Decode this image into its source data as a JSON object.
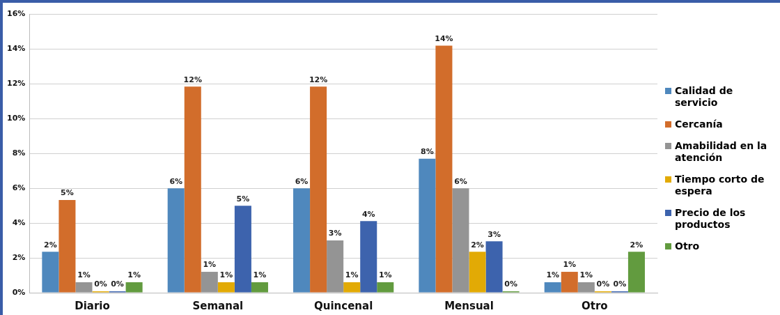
{
  "chart_data": {
    "type": "bar",
    "categories": [
      "Diario",
      "Semanal",
      "Quincenal",
      "Mensual",
      "Otro"
    ],
    "series": [
      {
        "name": "Calidad de servicio",
        "color": "#4f88bd",
        "values": [
          2.35,
          6.0,
          6.0,
          7.7,
          0.6
        ],
        "value_labels": [
          "2%",
          "6%",
          "6%",
          "8%",
          "1%"
        ]
      },
      {
        "name": "Cercanía",
        "color": "#d26d2b",
        "values": [
          5.33,
          11.85,
          11.85,
          14.2,
          1.2
        ],
        "value_labels": [
          "5%",
          "12%",
          "12%",
          "14%",
          "1%"
        ]
      },
      {
        "name": "Amabilidad en la atención",
        "color": "#949494",
        "values": [
          0.6,
          1.2,
          3.0,
          6.0,
          0.6
        ],
        "value_labels": [
          "1%",
          "1%",
          "3%",
          "6%",
          "1%"
        ]
      },
      {
        "name": "Tiempo corto de espera",
        "color": "#e2aa05",
        "values": [
          0,
          0.6,
          0.6,
          2.35,
          0
        ],
        "value_labels": [
          "0%",
          "1%",
          "1%",
          "2%",
          "0%"
        ]
      },
      {
        "name": "Precio de los productos",
        "color": "#3d63ad",
        "values": [
          0,
          5.0,
          4.12,
          2.95,
          0
        ],
        "value_labels": [
          "0%",
          "5%",
          "4%",
          "3%",
          "0%"
        ]
      },
      {
        "name": "Otro",
        "color": "#629b3f",
        "values": [
          0.6,
          0.6,
          0.6,
          0,
          2.35
        ],
        "value_labels": [
          "1%",
          "1%",
          "1%",
          "0%",
          "2%"
        ]
      }
    ],
    "ylim": [
      0,
      16
    ],
    "yticks": [
      {
        "value": 0,
        "label": "0%"
      },
      {
        "value": 2,
        "label": "2%"
      },
      {
        "value": 4,
        "label": "4%"
      },
      {
        "value": 6,
        "label": "6%"
      },
      {
        "value": 8,
        "label": "8%"
      },
      {
        "value": 10,
        "label": "10%"
      },
      {
        "value": 12,
        "label": "12%"
      },
      {
        "value": 14,
        "label": "14%"
      },
      {
        "value": 16,
        "label": "16%"
      }
    ],
    "grid": "y",
    "legend": "right"
  }
}
